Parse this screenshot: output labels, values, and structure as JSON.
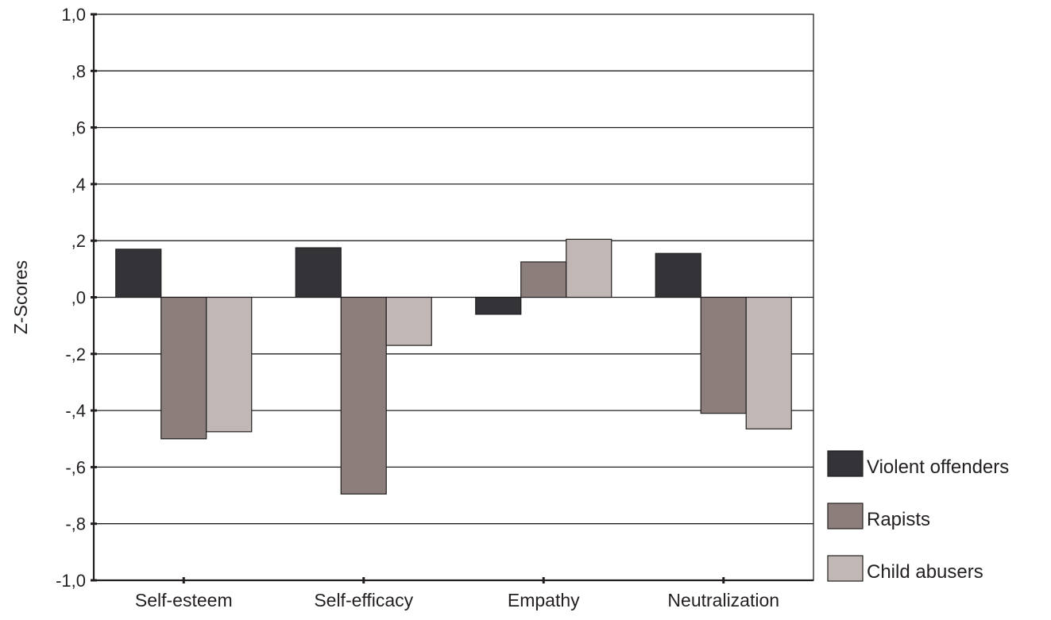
{
  "chart_data": {
    "type": "bar",
    "title": "",
    "xlabel": "",
    "ylabel": "Z-Scores",
    "ylim": [
      -1.0,
      1.0
    ],
    "yticks": [
      1.0,
      0.8,
      0.6,
      0.4,
      0.2,
      0.0,
      -0.2,
      -0.4,
      -0.6,
      -0.8,
      -1.0
    ],
    "ytick_labels": [
      "1,0",
      ",8",
      ",6",
      ",4",
      ",2",
      ",0",
      "-,2",
      "-,4",
      "-,6",
      "-,8",
      "-1,0"
    ],
    "grid": true,
    "legend_position": "bottom-right",
    "categories": [
      "Self-esteem",
      "Self-efficacy",
      "Empathy",
      "Neutralization"
    ],
    "series": [
      {
        "name": "Violent offenders",
        "color": "#333338",
        "values": [
          0.17,
          0.175,
          -0.06,
          0.155
        ]
      },
      {
        "name": "Rapists",
        "color": "#8c7f7b",
        "values": [
          -0.5,
          -0.695,
          0.125,
          -0.41
        ]
      },
      {
        "name": "Child abusers",
        "color": "#c1b8b5",
        "values": [
          -0.475,
          -0.17,
          0.205,
          -0.465
        ]
      }
    ]
  }
}
